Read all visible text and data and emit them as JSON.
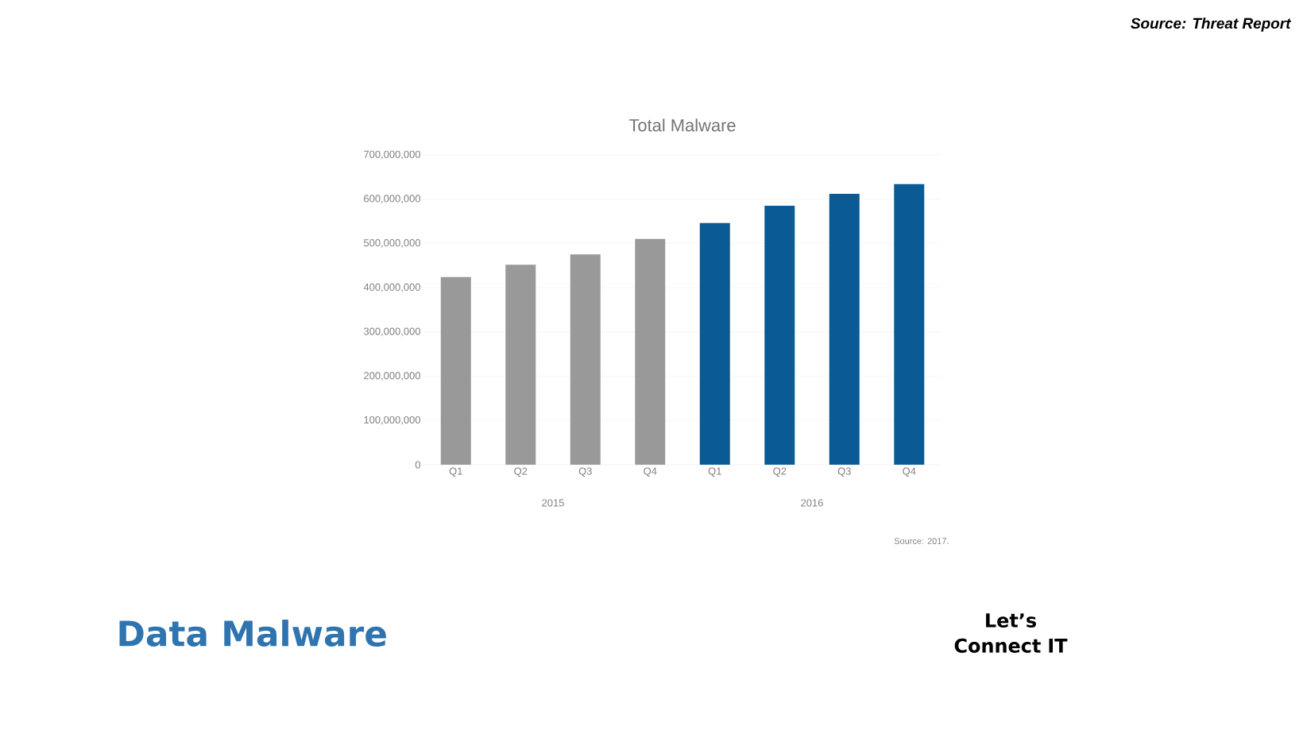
{
  "chart_data": {
    "type": "bar",
    "title": "Total Malware",
    "categories": [
      "Q1",
      "Q2",
      "Q3",
      "Q4",
      "Q1",
      "Q2",
      "Q3",
      "Q4"
    ],
    "values": [
      424000000,
      452000000,
      475000000,
      510000000,
      546000000,
      585000000,
      612000000,
      634000000
    ],
    "colors": [
      "#999999",
      "#999999",
      "#999999",
      "#999999",
      "#0a5a96",
      "#0a5a96",
      "#0a5a96",
      "#0a5a96"
    ],
    "ylim": [
      0,
      700000000
    ],
    "yticks": [
      0,
      {
        "value": 100000000,
        "label": "100,000,000"
      },
      {
        "value": 200000000,
        "label": "200,000,000"
      },
      {
        "value": 300000000,
        "label": "300,000,000"
      },
      {
        "value": 400000000,
        "label": "400,000,000"
      },
      {
        "value": 500000000,
        "label": "500,000,000"
      },
      {
        "value": 600000000,
        "label": "600,000,000"
      },
      {
        "value": 700000000,
        "label": "700,000,000"
      }
    ],
    "grid": "y",
    "annotations": [
      "2015",
      "2016",
      "Source: 2017.",
      "Source: Threat Report",
      "Data Malware",
      "Let’s Connect IT"
    ]
  }
}
